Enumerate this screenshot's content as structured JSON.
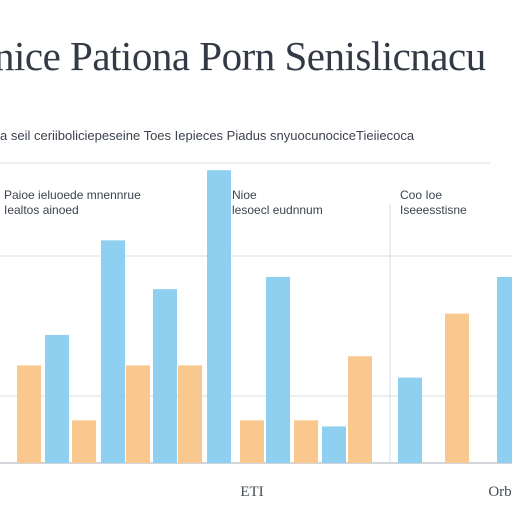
{
  "title": "nice Pationa Porn Senislicnacu",
  "subtitle": "a seil ceriiboliciepeseine Toes Iepieces Piadus snyuocunociceTieiiecoca",
  "group_labels": [
    {
      "line1": "Paioe ieluoede mnennrue",
      "line2": "Iealtos ainoed"
    },
    {
      "line1": "Nioe",
      "line2": "lesoecl eudnnum"
    },
    {
      "line1": "Coo Ioe",
      "line2": "Iseeesstisne"
    }
  ],
  "colors": {
    "blue": "#8fd0f0",
    "orange": "#f8c88e",
    "grid": "#dadde2",
    "axis": "#c4c8ce"
  },
  "chart_data": {
    "type": "bar",
    "title": "nice Pationa Porn Senislicnacu",
    "xlabel": "",
    "ylabel": "",
    "ylim": [
      0,
      100
    ],
    "grid": true,
    "x_tick_labels": [
      "",
      "ETI",
      "Orb"
    ],
    "bars": [
      {
        "color": "orange",
        "value": 32
      },
      {
        "color": "blue",
        "value": 42
      },
      {
        "color": "orange",
        "value": 14
      },
      {
        "color": "blue",
        "value": 73
      },
      {
        "color": "orange",
        "value": 32
      },
      {
        "color": "blue",
        "value": 57
      },
      {
        "color": "orange",
        "value": 32
      },
      {
        "color": "blue",
        "value": 96
      },
      {
        "color": "orange",
        "value": 14
      },
      {
        "color": "blue",
        "value": 61
      },
      {
        "color": "orange",
        "value": 14
      },
      {
        "color": "blue",
        "value": 12
      },
      {
        "color": "orange",
        "value": 35
      },
      {
        "color": "blue",
        "value": 28
      },
      {
        "color": "orange",
        "value": 49
      },
      {
        "color": "blue",
        "value": 61
      }
    ]
  }
}
